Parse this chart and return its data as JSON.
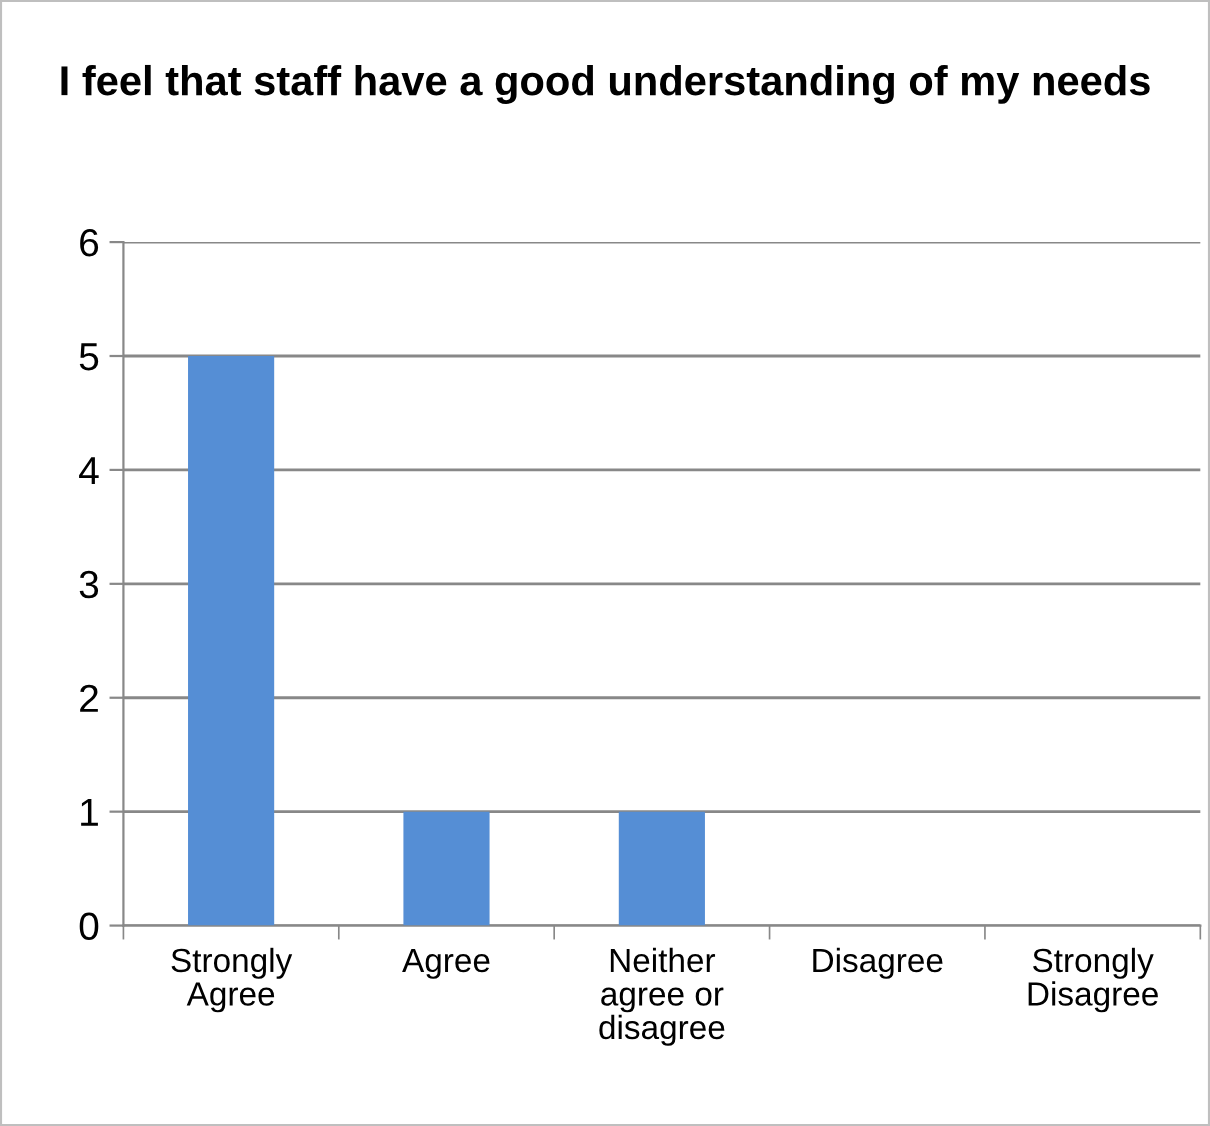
{
  "chart_data": {
    "type": "bar",
    "title": "I feel that staff have a good understanding of my needs",
    "categories": [
      "Strongly\nAgree",
      "Agree",
      "Neither\nagree or\ndisagree",
      "Disagree",
      "Strongly\nDisagree"
    ],
    "values": [
      5,
      1,
      1,
      0,
      0
    ],
    "color": "#558ed5",
    "ylim": [
      0,
      6
    ],
    "yticks": [
      0,
      1,
      2,
      3,
      4,
      5,
      6
    ],
    "grid": "y",
    "legend": false
  }
}
